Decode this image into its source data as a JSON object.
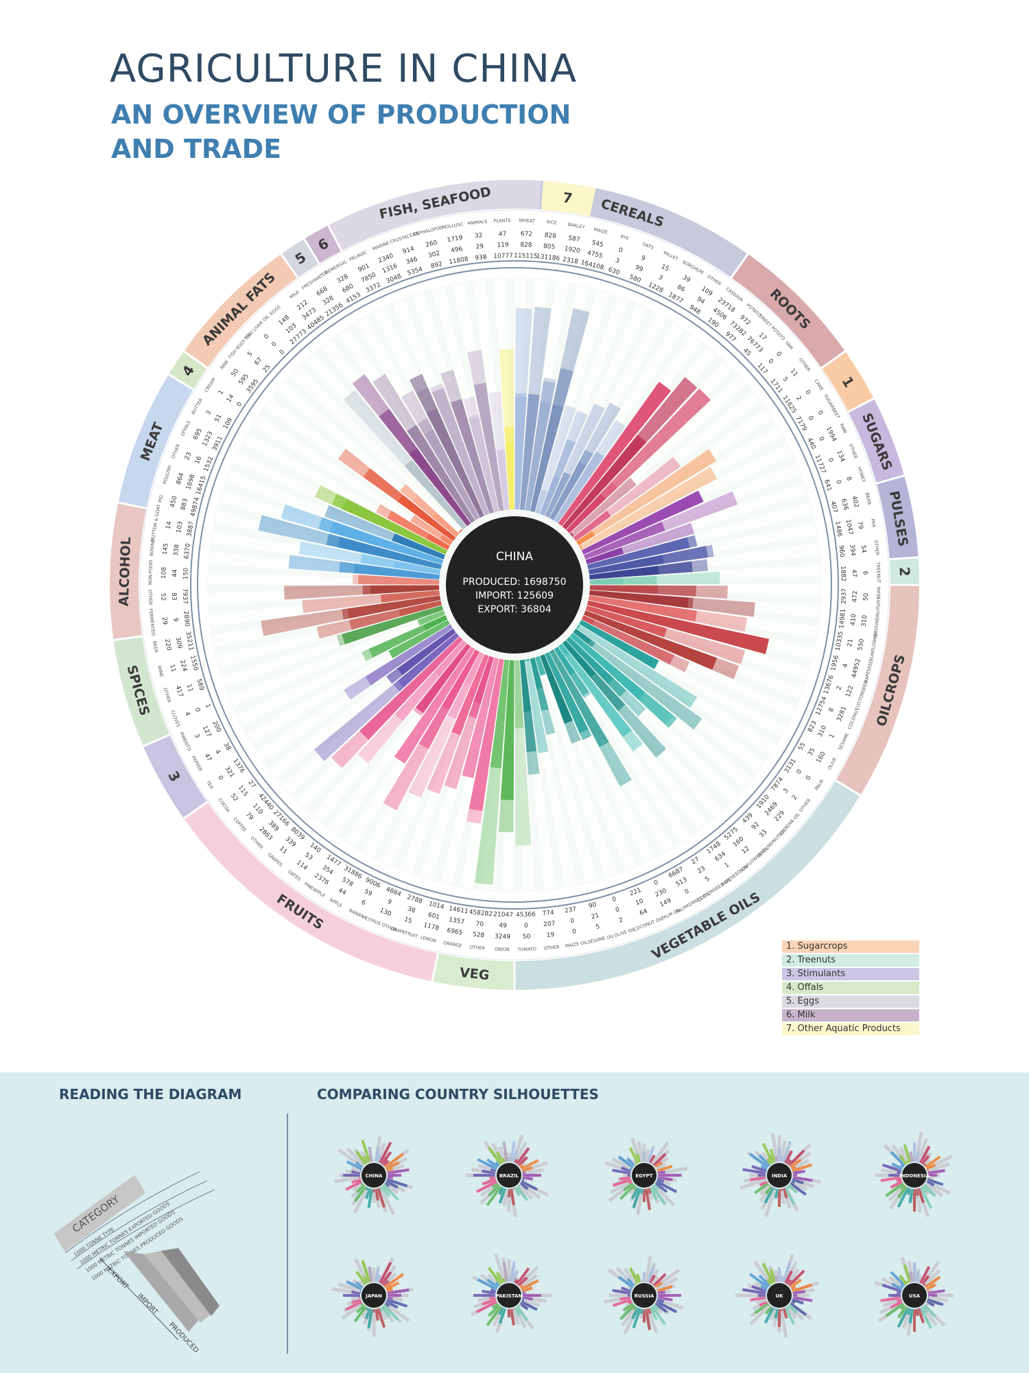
{
  "header": {
    "title": "AGRICULTURE IN CHINA",
    "subtitle_line1": "AN OVERVIEW OF PRODUCTION",
    "subtitle_line2": "AND TRADE"
  },
  "center": {
    "label": "CHINA",
    "produced": "PRODUCED: 1698750",
    "import": "IMPORT: 125609",
    "export": "EXPORT: 36804"
  },
  "categories": [
    {
      "label": "CEREALS",
      "color": "#c7c9dc"
    },
    {
      "label": "ROOTS",
      "color": "#d9a9ab"
    },
    {
      "label": "1",
      "color": "#f9cba5"
    },
    {
      "label": "SUGARS",
      "color": "#c6b9dd"
    },
    {
      "label": "PULSES",
      "color": "#b3b4d6"
    },
    {
      "label": "2",
      "color": "#cfe9e0"
    },
    {
      "label": "OILCROPS",
      "color": "#e6c3bc"
    },
    {
      "label": "VEGETABLE OILS",
      "color": "#cbdfe0"
    },
    {
      "label": "VEG",
      "color": "#d9ecd0"
    },
    {
      "label": "FRUITS",
      "color": "#f6cfdd"
    },
    {
      "label": "3",
      "color": "#c8c4e1"
    },
    {
      "label": "SPICES",
      "color": "#d2e6cf"
    },
    {
      "label": "ALCOHOL",
      "color": "#e8c7c2"
    },
    {
      "label": "MEAT",
      "color": "#c6d7ee"
    },
    {
      "label": "4",
      "color": "#d6e7c8"
    },
    {
      "label": "ANIMAL FATS",
      "color": "#f3cbb5"
    },
    {
      "label": "5",
      "color": "#d5d7df"
    },
    {
      "label": "6",
      "color": "#cbb7cf"
    },
    {
      "label": "FISH, SEAFOOD",
      "color": "#dcd8e4"
    },
    {
      "label": "7",
      "color": "#fbf7c9"
    }
  ],
  "items": [
    {
      "name": "WHEAT",
      "exp": "672",
      "imp": "828",
      "prod": "115115",
      "color": "#a9bde0"
    },
    {
      "name": "RICE",
      "exp": "828",
      "imp": "805",
      "prod": "131186",
      "color": "#8fa2c8"
    },
    {
      "name": "BARLEY",
      "exp": "587",
      "imp": "1920",
      "prod": "2318",
      "color": "#9fb1d3"
    },
    {
      "name": "MAIZE",
      "exp": "545",
      "imp": "4755",
      "prod": "164108",
      "color": "#7f94bc"
    },
    {
      "name": "RYE",
      "exp": "0",
      "imp": "3",
      "prod": "630",
      "color": "#b5c4e2"
    },
    {
      "name": "OATS",
      "exp": "9",
      "imp": "99",
      "prod": "580",
      "color": "#a0b3d8"
    },
    {
      "name": "MILLET",
      "exp": "15",
      "imp": "3",
      "prod": "1228",
      "color": "#94a8d0"
    },
    {
      "name": "SORGHUM",
      "exp": "39",
      "imp": "86",
      "prod": "1877",
      "color": "#889ec6"
    },
    {
      "name": "OTHER",
      "exp": "109",
      "imp": "94",
      "prod": "948",
      "color": "#aebfe0"
    },
    {
      "name": "CASSAVA",
      "exp": "23718",
      "imp": "4506",
      "prod": "190",
      "color": "#e0567a"
    },
    {
      "name": "POTATO",
      "exp": "972",
      "imp": "73282",
      "prod": "977",
      "color": "#c23b5e"
    },
    {
      "name": "SWEET POTATO",
      "exp": "17",
      "imp": "76773",
      "prod": "45",
      "color": "#d8476c"
    },
    {
      "name": "YAM",
      "exp": "0",
      "imp": "0",
      "prod": "117",
      "color": "#b8385a"
    },
    {
      "name": "OTHER",
      "exp": "11",
      "imp": "5",
      "prod": "1711",
      "color": "#e26a8a"
    },
    {
      "name": "CANE",
      "exp": "0",
      "imp": "2",
      "prod": "11625",
      "color": "#f47e2f"
    },
    {
      "name": "SUGARBEET",
      "exp": "0",
      "imp": "0",
      "prod": "7179",
      "color": "#f79a52"
    },
    {
      "name": "RAW",
      "exp": "1994",
      "imp": "0",
      "prod": "440",
      "color": "#9c4bb0"
    },
    {
      "name": "OTHER",
      "exp": "134",
      "imp": "0",
      "prod": "11727",
      "color": "#a862b8"
    },
    {
      "name": "HONEY",
      "exp": "8",
      "imp": "0",
      "prod": "641",
      "color": "#8c3fa3"
    },
    {
      "name": "BEAN",
      "exp": "402",
      "imp": "636",
      "prod": "407",
      "color": "#5f67b3"
    },
    {
      "name": "PEA",
      "exp": "79",
      "imp": "1047",
      "prod": "1486",
      "color": "#4f59a8"
    },
    {
      "name": "OTHER",
      "exp": "54",
      "imp": "394",
      "prod": "960",
      "color": "#3d4694"
    },
    {
      "name": "TREENUT",
      "exp": "6",
      "imp": "47",
      "prod": "1882",
      "color": "#7ccdb4"
    },
    {
      "name": "SOYBEAN",
      "exp": "50",
      "imp": "472",
      "prod": "2937",
      "color": "#b94a4d"
    },
    {
      "name": "GROUNDNUT",
      "exp": "310",
      "imp": "410",
      "prod": "14981",
      "color": "#a53b3f"
    },
    {
      "name": "SUNFLOWER",
      "exp": "550",
      "imp": "21",
      "prod": "10335",
      "color": "#e57373"
    },
    {
      "name": "RAPESEED",
      "exp": "44952",
      "imp": "4",
      "prod": "1956",
      "color": "#c9494e"
    },
    {
      "name": "COTTONSEED",
      "exp": "122",
      "imp": "2",
      "prod": "13676",
      "color": "#d85c5f"
    },
    {
      "name": "COCONUT",
      "exp": "3281",
      "imp": "8",
      "prod": "12754",
      "color": "#b5433f"
    },
    {
      "name": "SESAME",
      "exp": "1",
      "imp": "310",
      "prod": "823",
      "color": "#cf5258"
    },
    {
      "name": "OLIVE",
      "exp": "160",
      "imp": "35",
      "prod": "55",
      "color": "#2da39d"
    },
    {
      "name": "PALM",
      "exp": "0",
      "imp": "0",
      "prod": "3131",
      "color": "#3bb0aa"
    },
    {
      "name": "OTHER",
      "exp": "2",
      "imp": "3",
      "prod": "7874",
      "color": "#27938e"
    },
    {
      "name": "SOYBEAN OIL",
      "exp": "229",
      "imp": "2469",
      "prod": "1910",
      "color": "#42b9b2"
    },
    {
      "name": "GROUNDNUT OIL",
      "exp": "33",
      "imp": "92",
      "prod": "439",
      "color": "#32a6a0"
    },
    {
      "name": "SUNFLOWER OIL",
      "exp": "12",
      "imp": "160",
      "prod": "5275",
      "color": "#1f8f8a"
    },
    {
      "name": "RAPESEED OIL",
      "exp": "1",
      "imp": "634",
      "prod": "1748",
      "color": "#4cc0ba"
    },
    {
      "name": "COTTONSEED OIL",
      "exp": "5",
      "imp": "23",
      "prod": "27",
      "color": "#3aaea8"
    },
    {
      "name": "PALMKERNEL OIL",
      "exp": "0",
      "imp": "513",
      "prod": "6687",
      "color": "#2b9b95"
    },
    {
      "name": "PALM OIL",
      "exp": "149",
      "imp": "230",
      "prod": "0",
      "color": "#38aaa3"
    },
    {
      "name": "COCONUT OIL",
      "exp": "64",
      "imp": "10",
      "prod": "221",
      "color": "#1d8882"
    },
    {
      "name": "OLIVE OIL",
      "exp": "2",
      "imp": "0",
      "prod": "0",
      "color": "#4bbab3"
    },
    {
      "name": "SESAME OIL",
      "exp": "5",
      "imp": "21",
      "prod": "90",
      "color": "#2e9f98"
    },
    {
      "name": "MAIZE OIL",
      "exp": "0",
      "imp": "0",
      "prod": "237",
      "color": "#3db4ad"
    },
    {
      "name": "OTHER",
      "exp": "19",
      "imp": "207",
      "prod": "774",
      "color": "#27928c"
    },
    {
      "name": "TOMATO",
      "exp": "50",
      "imp": "0",
      "prod": "45366",
      "color": "#9fd39c"
    },
    {
      "name": "ONION",
      "exp": "3249",
      "imp": "49",
      "prod": "21047",
      "color": "#5db85a"
    },
    {
      "name": "OTHER",
      "exp": "528",
      "imp": "70",
      "prod": "458282",
      "color": "#74c471"
    },
    {
      "name": "ORANGE",
      "exp": "6965",
      "imp": "1357",
      "prod": "14611",
      "color": "#f07aa5"
    },
    {
      "name": "LEMON",
      "exp": "1178",
      "imp": "601",
      "prod": "1014",
      "color": "#f28fb4"
    },
    {
      "name": "GRAPEFRUIT",
      "exp": "15",
      "imp": "38",
      "prod": "2788",
      "color": "#e7568c"
    },
    {
      "name": "CITRUS OTHER",
      "exp": "130",
      "imp": "9",
      "prod": "4884",
      "color": "#ef6c9b"
    },
    {
      "name": "BANANA",
      "exp": "6",
      "imp": "59",
      "prod": "9006",
      "color": "#f5a0c0"
    },
    {
      "name": "APPLE",
      "exp": "44",
      "imp": "578",
      "prod": "31886",
      "color": "#ec5d92"
    },
    {
      "name": "PINEAPPLE",
      "exp": "2376",
      "imp": "354",
      "prod": "1477",
      "color": "#f185ae"
    },
    {
      "name": "DATES",
      "exp": "114",
      "imp": "53",
      "prod": "140",
      "color": "#e24f86"
    },
    {
      "name": "GRAPES",
      "exp": "11",
      "imp": "339",
      "prod": "8039",
      "color": "#f397ba"
    },
    {
      "name": "OTHER",
      "exp": "2863",
      "imp": "389",
      "prod": "27166",
      "color": "#ea6698"
    },
    {
      "name": "COFFEE",
      "exp": "79",
      "imp": "110",
      "prod": "42440",
      "color": "#7a67bf"
    },
    {
      "name": "COCOA",
      "exp": "52",
      "imp": "115",
      "prod": "27",
      "color": "#6555b0"
    },
    {
      "name": "TEA",
      "exp": "0",
      "imp": "321",
      "prod": "1376",
      "color": "#8a78c8"
    },
    {
      "name": "PEPPER",
      "exp": "47",
      "imp": "4",
      "prod": "38",
      "color": "#6bbf6a"
    },
    {
      "name": "PIMENTO",
      "exp": "3",
      "imp": "127",
      "prod": "200",
      "color": "#4fb04e"
    },
    {
      "name": "CLOVES",
      "exp": "4",
      "imp": "0",
      "prod": "1",
      "color": "#7dc87c"
    },
    {
      "name": "OTHER",
      "exp": "417",
      "imp": "11",
      "prod": "569",
      "color": "#5aa858"
    },
    {
      "name": "WINE",
      "exp": "11",
      "imp": "224",
      "prod": "1550",
      "color": "#c65a4f"
    },
    {
      "name": "BEER",
      "exp": "220",
      "imp": "309",
      "prod": "35211",
      "color": "#b44d45"
    },
    {
      "name": "FERMENTED",
      "exp": "29",
      "imp": "9",
      "prod": "2890",
      "color": "#d46b5f"
    },
    {
      "name": "OTHER",
      "exp": "52",
      "imp": "83",
      "prod": "7937",
      "color": "#a94239"
    },
    {
      "name": "NON-FOOD",
      "exp": "108",
      "imp": "44",
      "prod": "150",
      "color": "#e88a7f"
    },
    {
      "name": "BOVINE",
      "exp": "145",
      "imp": "338",
      "prod": "6370",
      "color": "#4f9bd6"
    },
    {
      "name": "MUTTON & GOAT",
      "exp": "14",
      "imp": "103",
      "prod": "3887",
      "color": "#7fc3ee"
    },
    {
      "name": "PIG",
      "exp": "450",
      "imp": "883",
      "prod": "49874",
      "color": "#3f8cc8"
    },
    {
      "name": "POULTRY",
      "exp": "864",
      "imp": "1698",
      "prod": "16415",
      "color": "#5fb0e6"
    },
    {
      "name": "OTHER",
      "exp": "23",
      "imp": "16",
      "prod": "1532",
      "color": "#2f7eb9"
    },
    {
      "name": "OFFALS",
      "exp": "695",
      "imp": "1323",
      "prod": "3911",
      "color": "#8dc63f"
    },
    {
      "name": "BUTTER",
      "exp": "3",
      "imp": "51",
      "prod": "109",
      "color": "#f06a4e"
    },
    {
      "name": "CREAM",
      "exp": "1",
      "imp": "14",
      "prod": "0",
      "color": "#f48a6d"
    },
    {
      "name": "RAW",
      "exp": "50",
      "imp": "595",
      "prod": "3595",
      "color": "#e65a3d"
    },
    {
      "name": "FISH BODY OIL",
      "exp": "5",
      "imp": "67",
      "prod": "25",
      "color": "#f7a083"
    },
    {
      "name": "FISH LIVER OIL",
      "exp": "0",
      "imp": "0",
      "prod": "0",
      "color": "#ec7758"
    },
    {
      "name": "EGGS",
      "exp": "148",
      "imp": "103",
      "prod": "27773",
      "color": "#b9c5cc"
    },
    {
      "name": "MILK",
      "exp": "212",
      "imp": "3473",
      "prod": "40485",
      "color": "#8c4a8d"
    },
    {
      "name": "FRESHWATER",
      "exp": "668",
      "imp": "328",
      "prod": "21356",
      "color": "#9e8aa8"
    },
    {
      "name": "DEMERSAL",
      "exp": "328",
      "imp": "680",
      "prod": "4153",
      "color": "#b3a2bd"
    },
    {
      "name": "PELAGIC",
      "exp": "901",
      "imp": "7850",
      "prod": "3372",
      "color": "#8f7a9b"
    },
    {
      "name": "MARINE",
      "exp": "2340",
      "imp": "1316",
      "prod": "3048",
      "color": "#c2b3cc"
    },
    {
      "name": "CRUSTACEAN",
      "exp": "914",
      "imp": "346",
      "prod": "5354",
      "color": "#a592b0"
    },
    {
      "name": "CEPHALOPOD",
      "exp": "260",
      "imp": "302",
      "prod": "892",
      "color": "#d0c4d8"
    },
    {
      "name": "MOLLUSC",
      "exp": "1719",
      "imp": "496",
      "prod": "11808",
      "color": "#b7a8c2"
    },
    {
      "name": "ANIMALS",
      "exp": "32",
      "imp": "29",
      "prod": "938",
      "color": "#d6cce0"
    },
    {
      "name": "PLANTS",
      "exp": "47",
      "imp": "119",
      "prod": "10777",
      "color": "#f4ee6a"
    }
  ],
  "legend": [
    {
      "label": "1. Sugarcrops",
      "color": "#fbd4b5"
    },
    {
      "label": "2. Treenuts",
      "color": "#d1ece2"
    },
    {
      "label": "3. Stimulants",
      "color": "#cbc6e4"
    },
    {
      "label": "4. Offals",
      "color": "#d8e9c9"
    },
    {
      "label": "5. Eggs",
      "color": "#dadbe1"
    },
    {
      "label": "6. Milk",
      "color": "#c8b3cd"
    },
    {
      "label": "7. Other Aquatic Products",
      "color": "#fbf7cd"
    }
  ],
  "bottom": {
    "reading_title": "READING THE DIAGRAM",
    "comparing_title": "COMPARING COUNTRY SILHOUETTES",
    "guide_category": "CATEGORY",
    "guide_type": "1000 TONNE TYPE",
    "guide_line_exported": "1000 METRIC TONNES EXPORTED GOODS",
    "guide_line_imported": "1000 METRIC TONNES IMPORTED GOODS",
    "guide_line_produced": "1000 METRIC TONNES PRODUCED GOODS",
    "guide_export": "EXPORT",
    "guide_import": "IMPORT",
    "guide_produced": "PRODUCED",
    "countries": [
      "CHINA",
      "BRAZIL",
      "EGYPT",
      "INDIA",
      "INDONESIA",
      "JAPAN",
      "PAKISTAN",
      "RUSSIA",
      "UK",
      "USA"
    ]
  }
}
